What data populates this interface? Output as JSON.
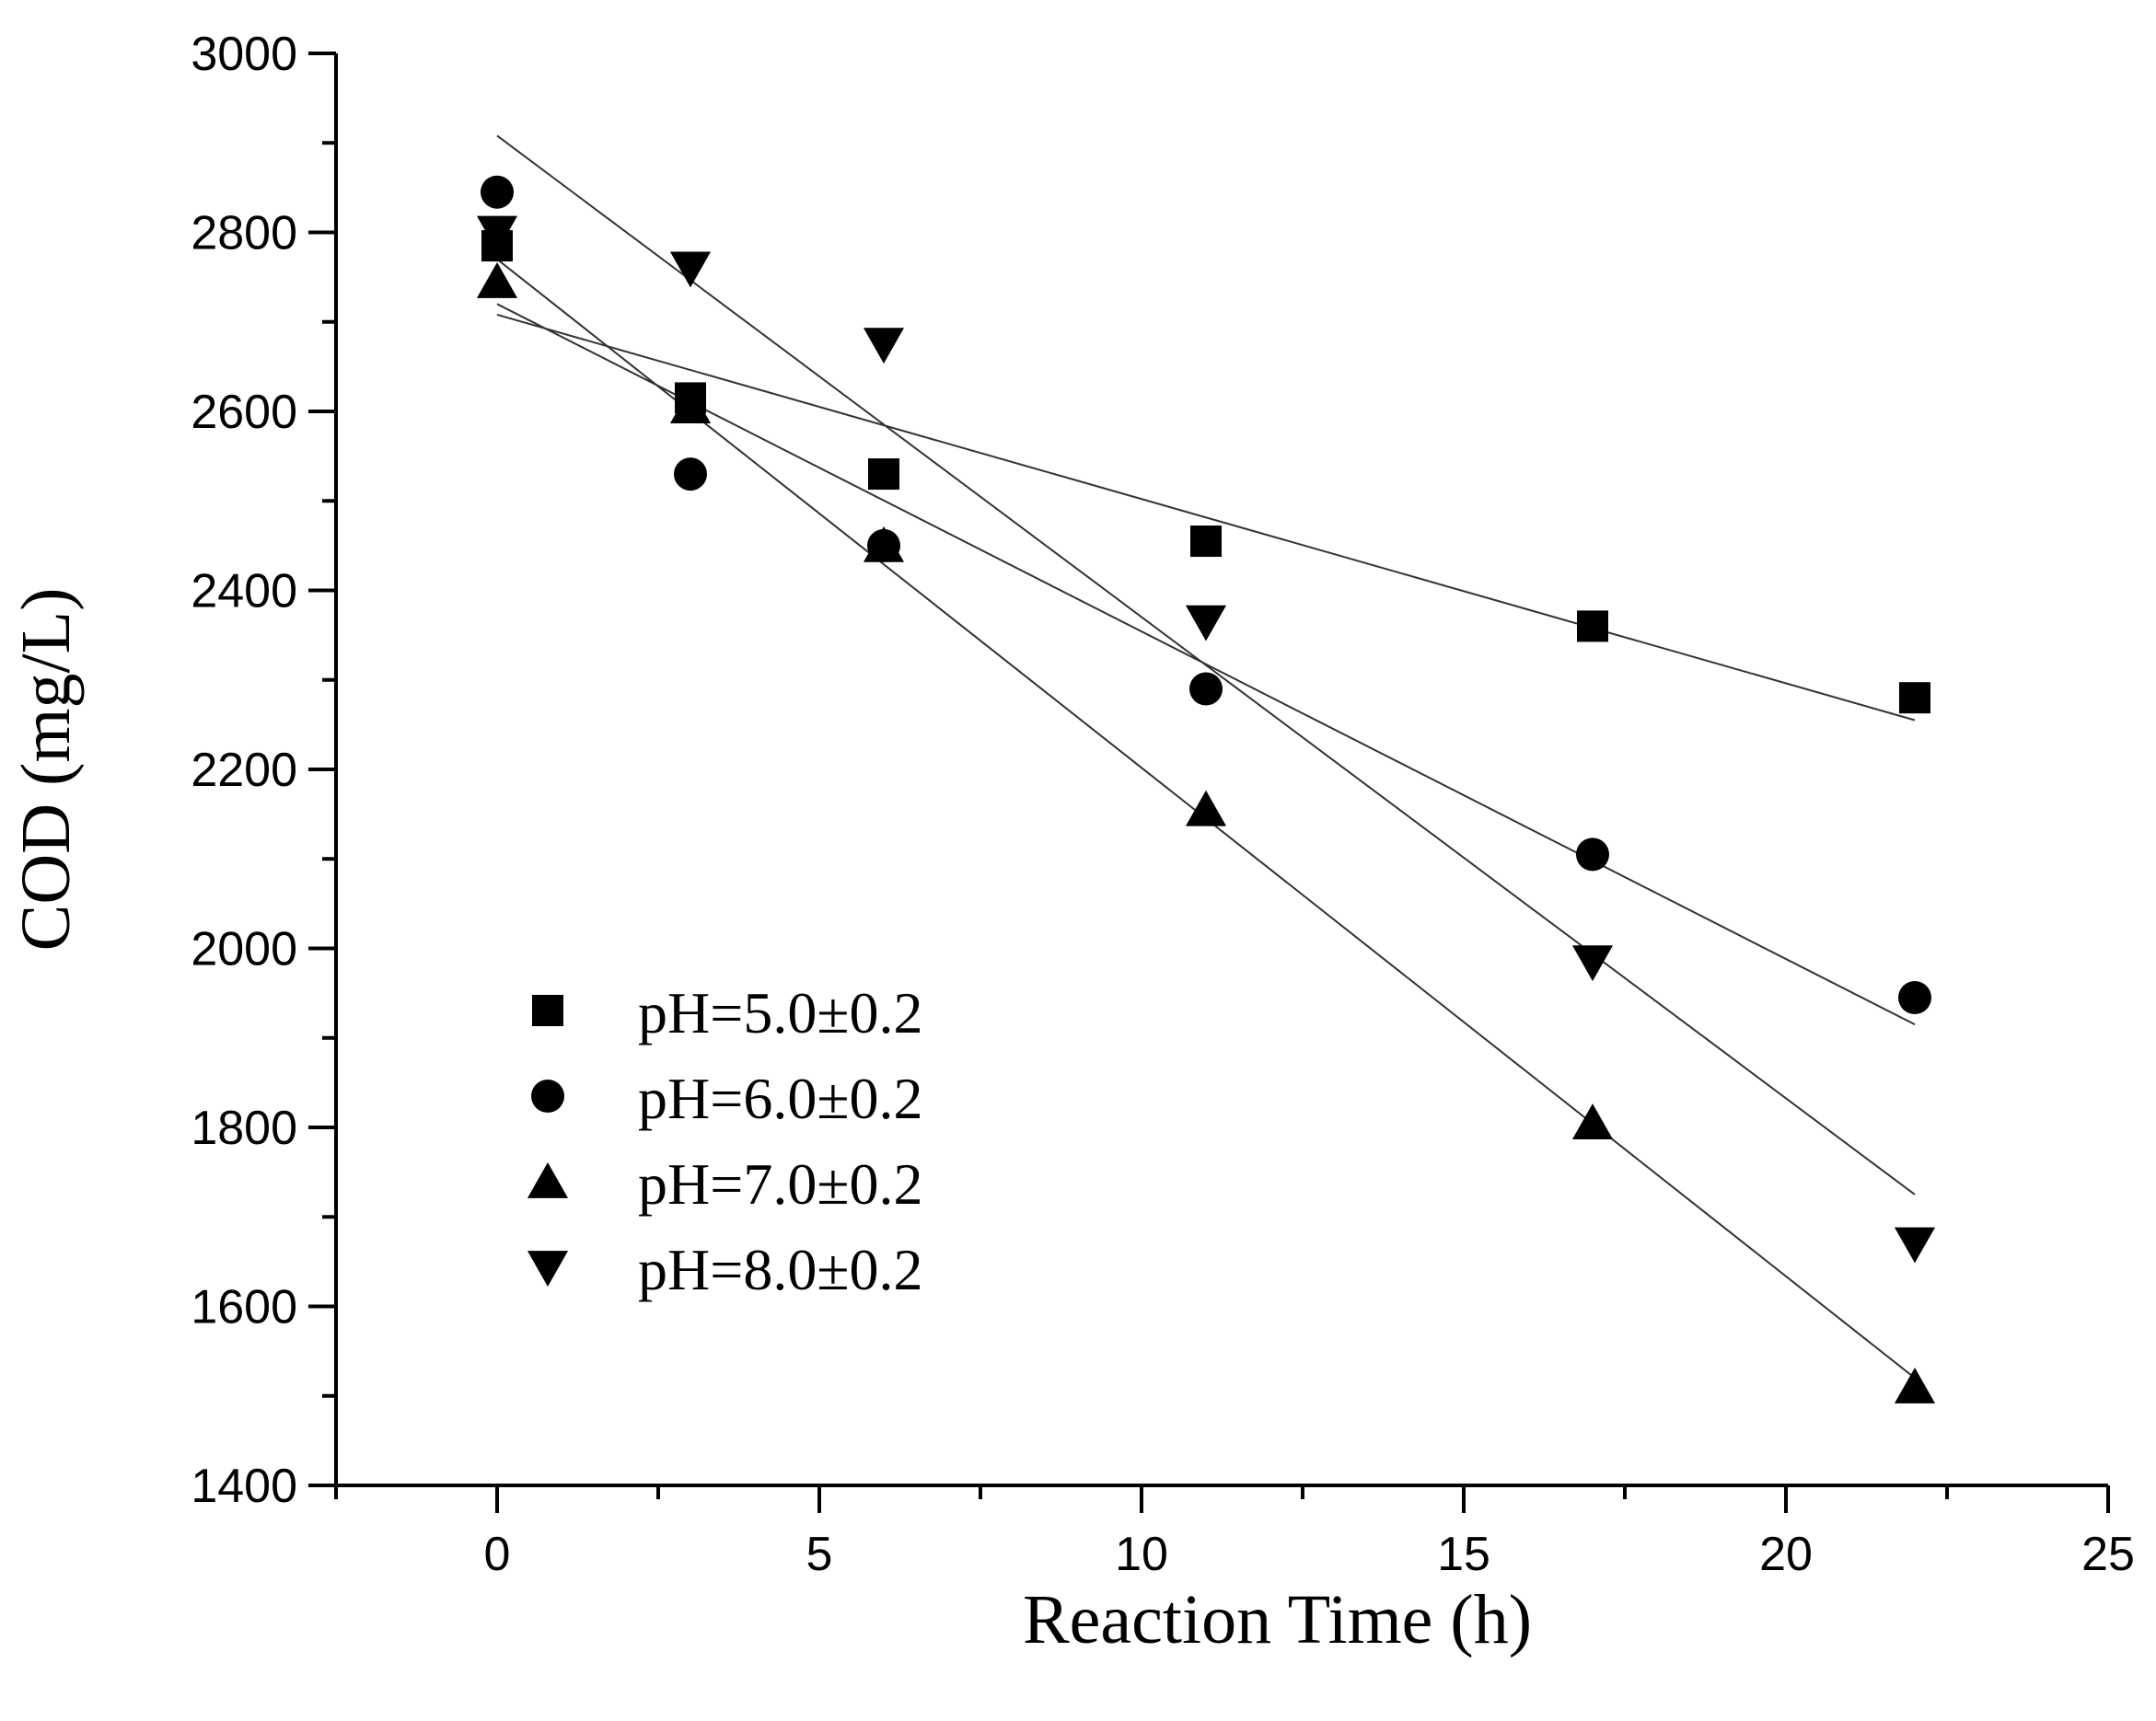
{
  "chart_data": {
    "type": "scatter",
    "title": "",
    "xlabel": "Reaction Time (h)",
    "ylabel": "COD (mg/L)",
    "xlim": [
      -2.5,
      25
    ],
    "ylim": [
      1400,
      3000
    ],
    "x_ticks": [
      0,
      5,
      10,
      15,
      20,
      25
    ],
    "y_ticks": [
      1400,
      1600,
      1800,
      2000,
      2200,
      2400,
      2600,
      2800,
      3000
    ],
    "grid": false,
    "legend_position": "bottom-left",
    "x": [
      0,
      3,
      6,
      11,
      17,
      22
    ],
    "series": [
      {
        "name": "pH=5.0±0.2",
        "marker": "square",
        "values": [
          2785,
          2615,
          2530,
          2455,
          2360,
          2280
        ],
        "fit": {
          "x": [
            0,
            22
          ],
          "y": [
            2708,
            2255
          ]
        }
      },
      {
        "name": "pH=6.0±0.2",
        "marker": "circle",
        "values": [
          2845,
          2530,
          2450,
          2290,
          2105,
          1945
        ],
        "fit": {
          "x": [
            0,
            22
          ],
          "y": [
            2720,
            1915
          ]
        }
      },
      {
        "name": "pH=7.0±0.2",
        "marker": "triangle-up",
        "values": [
          2745,
          2605,
          2450,
          2155,
          1805,
          1510
        ],
        "fit": {
          "x": [
            0,
            22
          ],
          "y": [
            2770,
            1520
          ]
        }
      },
      {
        "name": "pH=8.0±0.2",
        "marker": "triangle-down",
        "values": [
          2800,
          2760,
          2675,
          2365,
          1985,
          1670
        ],
        "fit": {
          "x": [
            0,
            22
          ],
          "y": [
            2908,
            1725
          ]
        }
      }
    ]
  }
}
